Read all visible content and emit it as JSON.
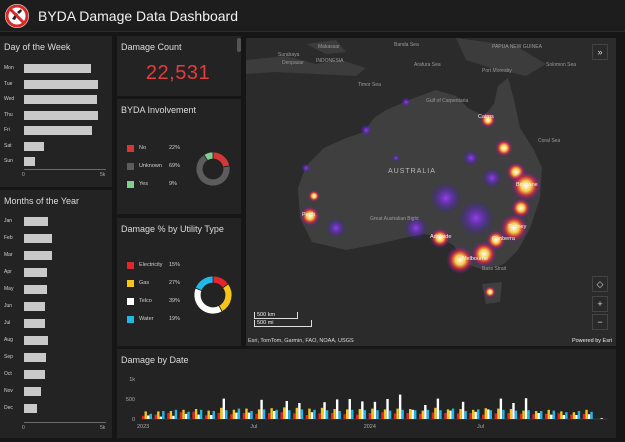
{
  "header": {
    "title": "BYDA Damage Data Dashboard",
    "logo_icon": "no-digging-icon"
  },
  "day_of_week": {
    "title": "Day of the Week",
    "labels": [
      "Mon",
      "Tue",
      "Wed",
      "Thu",
      "Fri",
      "Sat",
      "Sun"
    ],
    "values": [
      4.4,
      4.9,
      4.8,
      4.9,
      4.5,
      1.3,
      0.7
    ],
    "axis_min": "0",
    "axis_max": "5k",
    "max_value": 5
  },
  "months": {
    "title": "Months of the Year",
    "labels": [
      "Jan",
      "Feb",
      "Mar",
      "Apr",
      "May",
      "Jun",
      "Jul",
      "Aug",
      "Sep",
      "Oct",
      "Nov",
      "Dec"
    ],
    "values": [
      1.6,
      1.85,
      1.85,
      1.5,
      1.5,
      1.4,
      1.4,
      1.55,
      1.45,
      1.4,
      1.15,
      0.85
    ],
    "axis_min": "0",
    "axis_max": "5k",
    "max_value": 5
  },
  "damage_count": {
    "title": "Damage Count",
    "value": "22,531",
    "color": "#e33d3d"
  },
  "byda_involvement": {
    "title": "BYDA Involvement",
    "items": [
      {
        "name": "No",
        "pct": "22%",
        "value": 22,
        "color": "#d63636"
      },
      {
        "name": "Unknown",
        "pct": "69%",
        "value": 69,
        "color": "#5c5c5c"
      },
      {
        "name": "Yes",
        "pct": "9%",
        "value": 9,
        "color": "#7fcf8f"
      }
    ]
  },
  "utility_type": {
    "title": "Damage % by Utility Type",
    "items": [
      {
        "name": "Electricity",
        "pct": "15%",
        "value": 15,
        "color": "#e3262b"
      },
      {
        "name": "Gas",
        "pct": "27%",
        "value": 27,
        "color": "#f5c518"
      },
      {
        "name": "Telco",
        "pct": "39%",
        "value": 39,
        "color": "#ffffff"
      },
      {
        "name": "Water",
        "pct": "19%",
        "value": 19,
        "color": "#21b8e8"
      }
    ]
  },
  "map": {
    "credit": "Esri, TomTom, Garmin, FAO, NOAA, USGS",
    "powered_by": "Powered by Esri",
    "scale_km": "500 km",
    "scale_mi": "500 mi",
    "country_label": "AUSTRALIA",
    "place_labels": [
      "Makassar",
      "Surabaya",
      "Denpasar",
      "INDONESIA",
      "Banda Sea",
      "Arafura Sea",
      "PAPUA NEW GUINEA",
      "Port Moresby",
      "Solomon Sea",
      "Timor Sea",
      "Gulf of Carpentaria",
      "Coral Sea",
      "Great Australian Bight",
      "Bass Strait"
    ],
    "cities": [
      "Cairns",
      "Brisbane",
      "Sydney",
      "Canberra",
      "Melbourne",
      "Adelaide",
      "Perth"
    ],
    "buttons": {
      "expand": "»",
      "locate": "◇",
      "zoom_in": "+",
      "zoom_out": "−"
    }
  },
  "chart_data": [
    {
      "type": "bar",
      "title": "Damage by Date",
      "ylabel": "",
      "xlabel": "",
      "ylim": [
        0,
        1000
      ],
      "yticks": [
        "1k",
        "500",
        "0"
      ],
      "x_tick_labels": [
        "2023",
        "Jul",
        "2024",
        "Jul"
      ],
      "series_colors": [
        "#e3262b",
        "#f5c518",
        "#ffffff",
        "#21b8e8"
      ],
      "values": [
        [
          80,
          190,
          90,
          130
        ],
        [
          110,
          190,
          60,
          200
        ],
        [
          150,
          200,
          80,
          230
        ],
        [
          170,
          230,
          130,
          180
        ],
        [
          180,
          250,
          110,
          230
        ],
        [
          90,
          210,
          100,
          200
        ],
        [
          150,
          280,
          510,
          220
        ],
        [
          120,
          230,
          160,
          260
        ],
        [
          150,
          260,
          160,
          200
        ],
        [
          130,
          240,
          480,
          240
        ],
        [
          150,
          270,
          200,
          230
        ],
        [
          170,
          290,
          450,
          220
        ],
        [
          140,
          280,
          400,
          240
        ],
        [
          100,
          260,
          170,
          230
        ],
        [
          140,
          280,
          420,
          220
        ],
        [
          150,
          250,
          490,
          200
        ],
        [
          120,
          240,
          500,
          230
        ],
        [
          110,
          250,
          440,
          220
        ],
        [
          150,
          260,
          430,
          220
        ],
        [
          170,
          240,
          500,
          210
        ],
        [
          140,
          260,
          610,
          230
        ],
        [
          150,
          250,
          230,
          220
        ],
        [
          130,
          210,
          350,
          230
        ],
        [
          160,
          280,
          510,
          220
        ],
        [
          150,
          240,
          210,
          260
        ],
        [
          140,
          250,
          430,
          200
        ],
        [
          150,
          230,
          180,
          240
        ],
        [
          110,
          270,
          240,
          220
        ],
        [
          140,
          260,
          510,
          230
        ],
        [
          150,
          250,
          400,
          210
        ],
        [
          130,
          210,
          520,
          220
        ],
        [
          120,
          200,
          150,
          200
        ],
        [
          130,
          230,
          110,
          210
        ],
        [
          140,
          190,
          100,
          170
        ],
        [
          110,
          170,
          100,
          200
        ],
        [
          130,
          230,
          120,
          180
        ],
        [
          0,
          0,
          20,
          0
        ]
      ]
    }
  ]
}
